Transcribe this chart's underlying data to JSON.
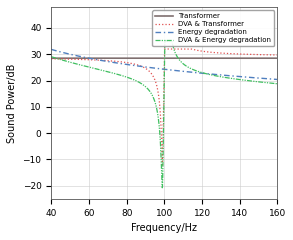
{
  "title": "",
  "xlabel": "Frequency/Hz",
  "ylabel": "Sound Power/dB",
  "xlim": [
    40,
    160
  ],
  "ylim": [
    -25,
    48
  ],
  "xticks": [
    40,
    60,
    80,
    100,
    120,
    140,
    160
  ],
  "yticks": [
    -20,
    -10,
    0,
    10,
    20,
    30,
    40
  ],
  "transformer_color": "#7f6f6f",
  "dva_transformer_color": "#e05050",
  "energy_degradation_color": "#4f7fbf",
  "dva_energy_color": "#40bf60",
  "figsize": [
    2.93,
    2.4
  ],
  "dpi": 100
}
